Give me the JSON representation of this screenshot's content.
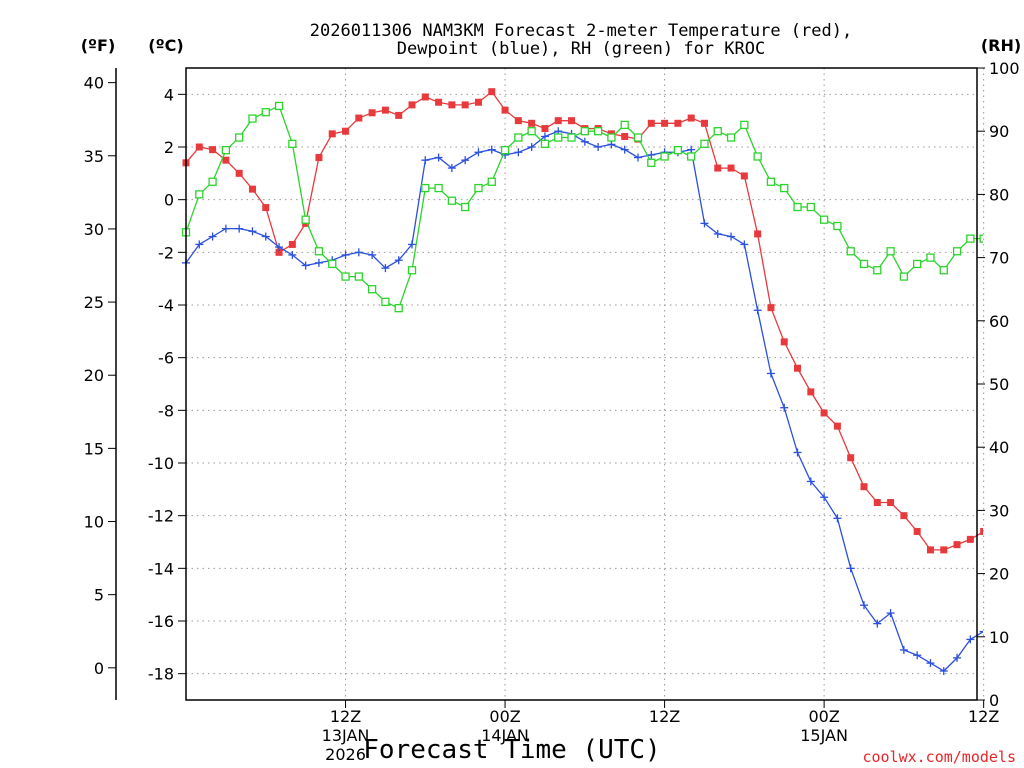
{
  "chart_data": {
    "type": "line",
    "title_line1": "2026011306 NAM3KM Forecast 2-meter Temperature (red),",
    "title_line2": "Dewpoint (blue), RH (green) for KROC",
    "xlabel": "Forecast Time (UTC)",
    "credit": "coolwx.com/models",
    "unit_f": "(ºF)",
    "unit_c": "(ºC)",
    "unit_rh": "(RH)",
    "xlim": [
      -6,
      53.5
    ],
    "ylim_c": [
      -19,
      5
    ],
    "ylim_rh": [
      0,
      100
    ],
    "x_ticks": [
      {
        "hour": 6,
        "label": "12Z",
        "sub1": "13JAN",
        "sub2": "2026"
      },
      {
        "hour": 18,
        "label": "00Z",
        "sub1": "14JAN",
        "sub2": ""
      },
      {
        "hour": 30,
        "label": "12Z",
        "sub1": "",
        "sub2": ""
      },
      {
        "hour": 42,
        "label": "00Z",
        "sub1": "15JAN",
        "sub2": ""
      },
      {
        "hour": 54,
        "label": "12Z",
        "sub1": "",
        "sub2": ""
      }
    ],
    "y_ticks_c": [
      "4",
      "2",
      "0",
      "-2",
      "-4",
      "-6",
      "-8",
      "-10",
      "-12",
      "-14",
      "-16",
      "-18"
    ],
    "y_ticks_f": [
      "40",
      "35",
      "30",
      "25",
      "20",
      "15",
      "10",
      "5",
      "0"
    ],
    "y_ticks_rh": [
      "100",
      "90",
      "80",
      "70",
      "60",
      "50",
      "40",
      "30",
      "20",
      "10",
      "0"
    ],
    "hours_start": -6,
    "hours_step": 1,
    "series": [
      {
        "name": "2-meter Temperature",
        "unit": "°C",
        "color": "#e8393c",
        "marker": "filled-square",
        "values": [
          1.4,
          2.0,
          1.9,
          1.5,
          1.0,
          0.4,
          -0.3,
          -2.0,
          -1.7,
          -0.9,
          1.6,
          2.5,
          2.6,
          3.1,
          3.3,
          3.4,
          3.2,
          3.6,
          3.9,
          3.7,
          3.6,
          3.6,
          3.7,
          4.1,
          3.4,
          3.0,
          2.9,
          2.7,
          3.0,
          3.0,
          2.7,
          2.7,
          2.5,
          2.4,
          2.3,
          2.9,
          2.9,
          2.9,
          3.1,
          2.9,
          1.2,
          1.2,
          0.9,
          -1.3,
          -4.1,
          -5.4,
          -6.4,
          -7.3,
          -8.1,
          -8.6,
          -9.8,
          -10.9,
          -11.5,
          -11.5,
          -12.0,
          -12.6,
          -13.3,
          -13.3,
          -13.1,
          -12.9,
          -12.6,
          -12.3
        ]
      },
      {
        "name": "Dewpoint",
        "unit": "°C",
        "color": "#2a50de",
        "marker": "plus",
        "values": [
          -2.4,
          -1.7,
          -1.4,
          -1.1,
          -1.1,
          -1.2,
          -1.4,
          -1.8,
          -2.1,
          -2.5,
          -2.4,
          -2.3,
          -2.1,
          -2.0,
          -2.1,
          -2.6,
          -2.3,
          -1.7,
          1.5,
          1.6,
          1.2,
          1.5,
          1.8,
          1.9,
          1.7,
          1.8,
          2.0,
          2.4,
          2.6,
          2.5,
          2.2,
          2.0,
          2.1,
          1.9,
          1.6,
          1.7,
          1.8,
          1.8,
          1.9,
          -0.9,
          -1.3,
          -1.4,
          -1.7,
          -4.2,
          -6.6,
          -7.9,
          -9.6,
          -10.7,
          -11.3,
          -12.1,
          -14.0,
          -15.4,
          -16.1,
          -15.7,
          -17.1,
          -17.3,
          -17.6,
          -17.9,
          -17.4,
          -16.7,
          -16.4,
          -15.7
        ]
      },
      {
        "name": "RH",
        "unit": "%",
        "color": "#2bd42b",
        "marker": "open-square",
        "values": [
          74,
          80,
          82,
          87,
          89,
          92,
          93,
          94,
          88,
          76,
          71,
          69,
          67,
          67,
          65,
          63,
          62,
          68,
          81,
          81,
          79,
          78,
          81,
          82,
          87,
          89,
          90,
          88,
          89,
          89,
          90,
          90,
          89,
          91,
          89,
          85,
          86,
          87,
          86,
          88,
          90,
          89,
          91,
          86,
          82,
          81,
          78,
          78,
          76,
          75,
          71,
          69,
          68,
          71,
          67,
          69,
          70,
          68,
          71,
          73,
          73,
          77
        ]
      }
    ]
  }
}
